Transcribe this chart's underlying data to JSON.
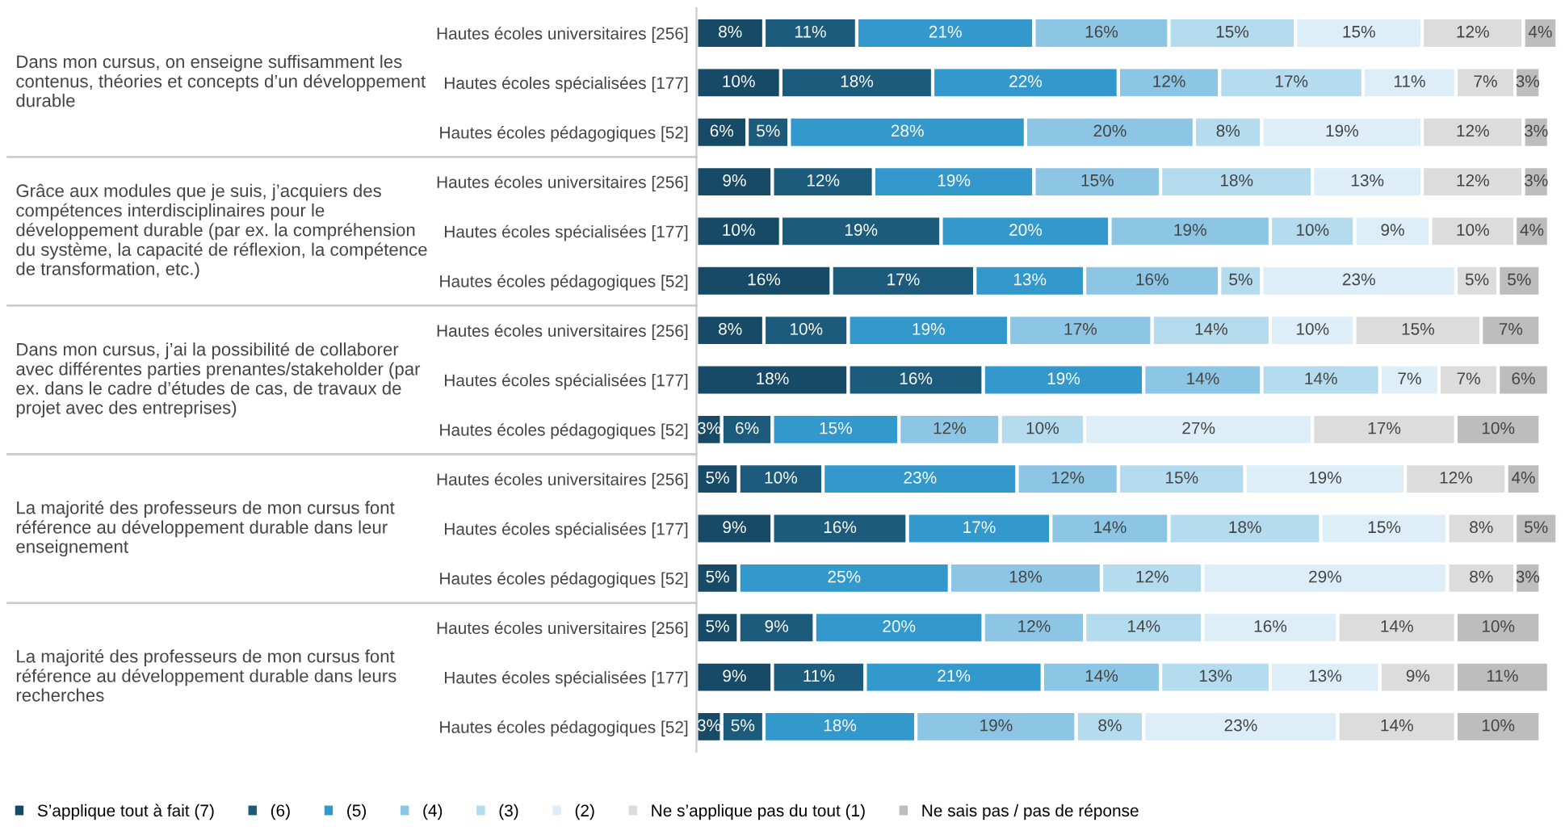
{
  "chart_data": {
    "type": "bar",
    "orientation": "horizontal",
    "stacked": true,
    "legend": "bottom",
    "tick_labels": "y",
    "grid": false,
    "categories": [
      "Hautes écoles universitaires [256]",
      "Hautes écoles spécialisées [177]",
      "Hautes écoles pédagogiques [52]",
      "Hautes écoles universitaires [256]",
      "Hautes écoles spécialisées [177]",
      "Hautes écoles pédagogiques [52]",
      "Hautes écoles universitaires [256]",
      "Hautes écoles spécialisées [177]",
      "Hautes écoles pédagogiques [52]",
      "Hautes écoles universitaires [256]",
      "Hautes écoles spécialisées [177]",
      "Hautes écoles pédagogiques [52]",
      "Hautes écoles universitaires [256]",
      "Hautes écoles spécialisées [177]",
      "Hautes écoles pédagogiques [52]"
    ],
    "annotations": [
      "Dans mon cursus, on enseigne suffisamment les\ncontenus, théories et concepts d’un développement\ndurable",
      "Grâce aux modules que je suis, j’acquiers des\ncompétences interdisciplinaires pour le\ndéveloppement durable (par ex. la compréhension\ndu système, la capacité de réflexion, la compétence\nde transformation, etc.)",
      "Dans mon cursus, j’ai la possibilité de collaborer\navec différentes parties prenantes/stakeholder (par\nex. dans le cadre d’études de cas, de travaux de\nprojet avec des entreprises)",
      "La majorité des professeurs de mon cursus font\nréférence au développement durable dans leur\nenseignement",
      "La majorité des professeurs de mon cursus font\nréférence au développement durable dans leurs\nrecherches"
    ],
    "series": [
      {
        "name": "S’applique tout à fait (7)",
        "color": "#174a66",
        "values": [
          8,
          10,
          6,
          9,
          10,
          16,
          8,
          18,
          3,
          5,
          9,
          5,
          5,
          9,
          3
        ],
        "value_labels": [
          "8%",
          "10%",
          "6%",
          "9%",
          "10%",
          "16%",
          "8%",
          "18%",
          "3%",
          "5%",
          "9%",
          "5%",
          "5%",
          "9%",
          "3%"
        ]
      },
      {
        "name": "(6)",
        "color": "#1d5b7c",
        "values": [
          11,
          18,
          5,
          12,
          19,
          17,
          10,
          16,
          6,
          10,
          16,
          null,
          9,
          11,
          5
        ],
        "value_labels": [
          "11%",
          "18%",
          "5%",
          "12%",
          "19%",
          "17%",
          "10%",
          "16%",
          "6%",
          "10%",
          "16%",
          null,
          "9%",
          "11%",
          "5%"
        ]
      },
      {
        "name": "(5)",
        "color": "#3399cc",
        "values": [
          21,
          22,
          28,
          19,
          20,
          13,
          19,
          19,
          15,
          23,
          17,
          25,
          20,
          21,
          18
        ],
        "value_labels": [
          "21%",
          "22%",
          "28%",
          "19%",
          "20%",
          "13%",
          "19%",
          "19%",
          "15%",
          "23%",
          "17%",
          "25%",
          "20%",
          "21%",
          "18%"
        ]
      },
      {
        "name": "(4)",
        "color": "#8cc6e4",
        "values": [
          16,
          12,
          20,
          15,
          19,
          16,
          17,
          14,
          12,
          12,
          14,
          18,
          12,
          14,
          19
        ],
        "value_labels": [
          "16%",
          "12%",
          "20%",
          "15%",
          "19%",
          "16%",
          "17%",
          "14%",
          "12%",
          "12%",
          "14%",
          "18%",
          "12%",
          "14%",
          "19%"
        ]
      },
      {
        "name": "(3)",
        "color": "#b5dbef",
        "values": [
          15,
          17,
          8,
          18,
          10,
          5,
          14,
          14,
          10,
          15,
          18,
          12,
          14,
          13,
          8
        ],
        "value_labels": [
          "15%",
          "17%",
          "8%",
          "18%",
          "10%",
          "5%",
          "14%",
          "14%",
          "10%",
          "15%",
          "18%",
          "12%",
          "14%",
          "13%",
          "8%"
        ]
      },
      {
        "name": "(2)",
        "color": "#deeef8",
        "values": [
          15,
          11,
          19,
          13,
          9,
          23,
          10,
          7,
          27,
          19,
          15,
          29,
          16,
          13,
          23
        ],
        "value_labels": [
          "15%",
          "11%",
          "19%",
          "13%",
          "9%",
          "23%",
          "10%",
          "7%",
          "27%",
          "19%",
          "15%",
          "29%",
          "16%",
          "13%",
          "23%"
        ]
      },
      {
        "name": "Ne s’applique pas du tout (1)",
        "color": "#dcdcdc",
        "values": [
          12,
          7,
          12,
          12,
          10,
          5,
          15,
          7,
          17,
          12,
          8,
          8,
          14,
          9,
          14
        ],
        "value_labels": [
          "12%",
          "7%",
          "12%",
          "12%",
          "10%",
          "5%",
          "15%",
          "7%",
          "17%",
          "12%",
          "8%",
          "8%",
          "14%",
          "9%",
          "14%"
        ]
      },
      {
        "name": "Ne sais pas / pas de réponse",
        "color": "#bdbdbd",
        "values": [
          4,
          3,
          3,
          3,
          4,
          5,
          7,
          6,
          10,
          4,
          5,
          3,
          10,
          11,
          10
        ],
        "value_labels": [
          "4%",
          "3%",
          "3%",
          "3%",
          "4%",
          "5%",
          "7%",
          "6%",
          "10%",
          "4%",
          "5%",
          "3%",
          "10%",
          "11%",
          "10%"
        ]
      }
    ]
  }
}
